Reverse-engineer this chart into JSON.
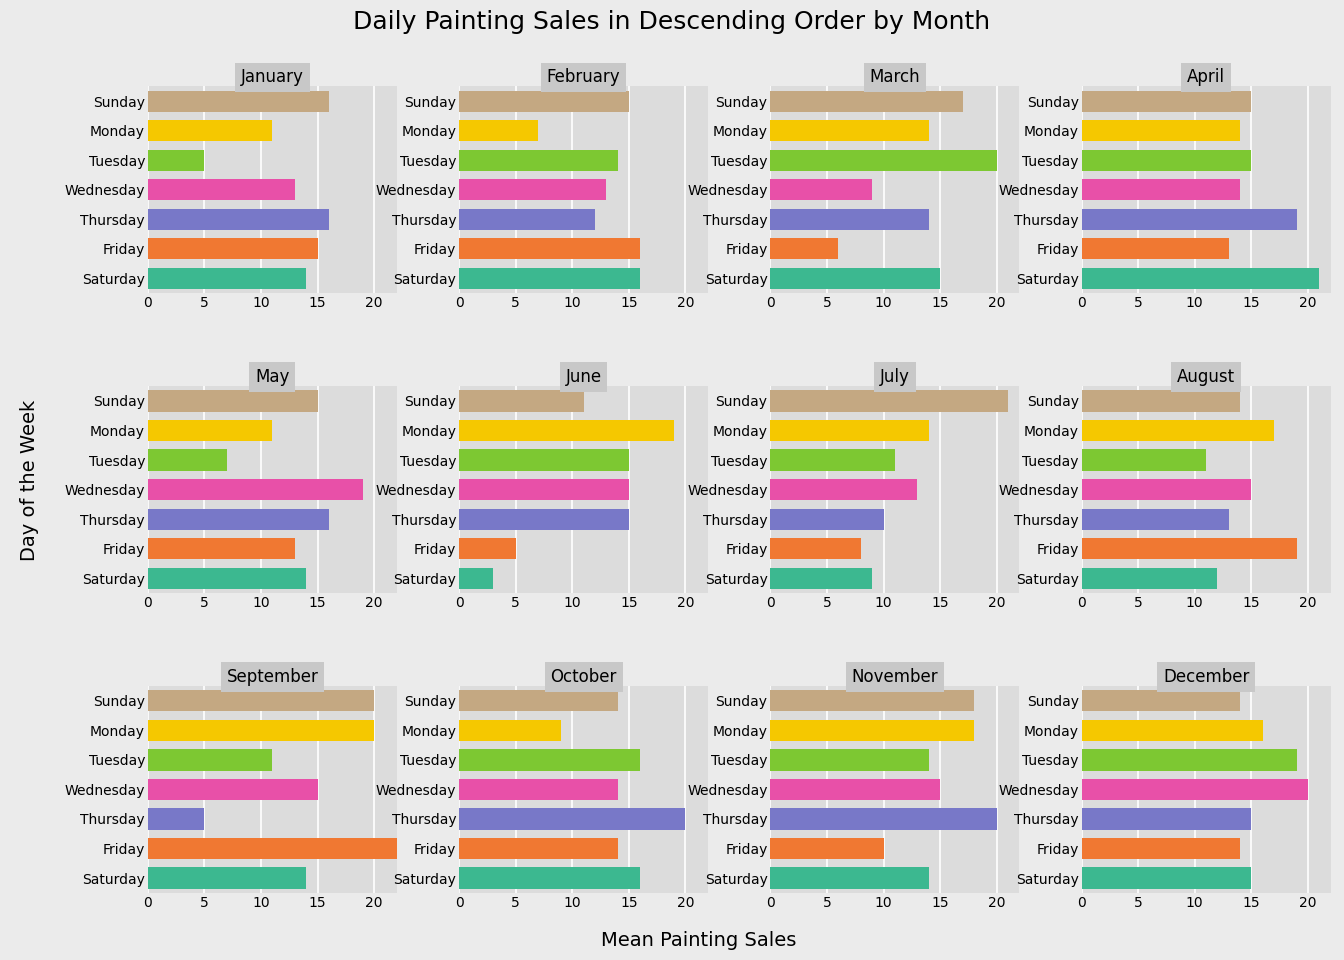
{
  "title": "Daily Painting Sales in Descending Order by Month",
  "xlabel": "Mean Painting Sales",
  "ylabel": "Day of the Week",
  "months": [
    "January",
    "February",
    "March",
    "April",
    "May",
    "June",
    "July",
    "August",
    "September",
    "October",
    "November",
    "December"
  ],
  "days": [
    "Sunday",
    "Monday",
    "Tuesday",
    "Wednesday",
    "Thursday",
    "Friday",
    "Saturday"
  ],
  "colors": {
    "Sunday": "#C4A882",
    "Monday": "#F5C800",
    "Tuesday": "#7DC832",
    "Wednesday": "#E850A8",
    "Thursday": "#7878C8",
    "Friday": "#F07832",
    "Saturday": "#3CB890"
  },
  "data": {
    "January": {
      "Sunday": 16,
      "Monday": 11,
      "Tuesday": 5,
      "Wednesday": 13,
      "Thursday": 16,
      "Friday": 15,
      "Saturday": 14
    },
    "February": {
      "Sunday": 15,
      "Monday": 7,
      "Tuesday": 14,
      "Wednesday": 13,
      "Thursday": 12,
      "Friday": 16,
      "Saturday": 16
    },
    "March": {
      "Sunday": 17,
      "Monday": 14,
      "Tuesday": 20,
      "Wednesday": 9,
      "Thursday": 14,
      "Friday": 6,
      "Saturday": 15
    },
    "April": {
      "Sunday": 15,
      "Monday": 14,
      "Tuesday": 15,
      "Wednesday": 14,
      "Thursday": 19,
      "Friday": 13,
      "Saturday": 21
    },
    "May": {
      "Sunday": 15,
      "Monday": 11,
      "Tuesday": 7,
      "Wednesday": 19,
      "Thursday": 16,
      "Friday": 13,
      "Saturday": 14
    },
    "June": {
      "Sunday": 11,
      "Monday": 19,
      "Tuesday": 15,
      "Wednesday": 15,
      "Thursday": 15,
      "Friday": 5,
      "Saturday": 3
    },
    "July": {
      "Sunday": 21,
      "Monday": 14,
      "Tuesday": 11,
      "Wednesday": 13,
      "Thursday": 10,
      "Friday": 8,
      "Saturday": 9
    },
    "August": {
      "Sunday": 14,
      "Monday": 17,
      "Tuesday": 11,
      "Wednesday": 15,
      "Thursday": 13,
      "Friday": 19,
      "Saturday": 12
    },
    "September": {
      "Sunday": 20,
      "Monday": 20,
      "Tuesday": 11,
      "Wednesday": 15,
      "Thursday": 5,
      "Friday": 22,
      "Saturday": 14
    },
    "October": {
      "Sunday": 14,
      "Monday": 9,
      "Tuesday": 16,
      "Wednesday": 14,
      "Thursday": 20,
      "Friday": 14,
      "Saturday": 16
    },
    "November": {
      "Sunday": 18,
      "Monday": 18,
      "Tuesday": 14,
      "Wednesday": 15,
      "Thursday": 20,
      "Friday": 10,
      "Saturday": 14
    },
    "December": {
      "Sunday": 14,
      "Monday": 16,
      "Tuesday": 19,
      "Wednesday": 20,
      "Thursday": 15,
      "Friday": 14,
      "Saturday": 15
    }
  },
  "xlim": [
    0,
    22
  ],
  "xticks": [
    0,
    5,
    10,
    15,
    20
  ],
  "background_color": "#EBEBEB",
  "panel_background": "#DCDCDC",
  "strip_background": "#C8C8C8",
  "grid_color": "#FFFFFF",
  "nrows": 3,
  "ncols": 4,
  "title_fontsize": 18,
  "label_fontsize": 14,
  "tick_fontsize": 10,
  "strip_fontsize": 12
}
